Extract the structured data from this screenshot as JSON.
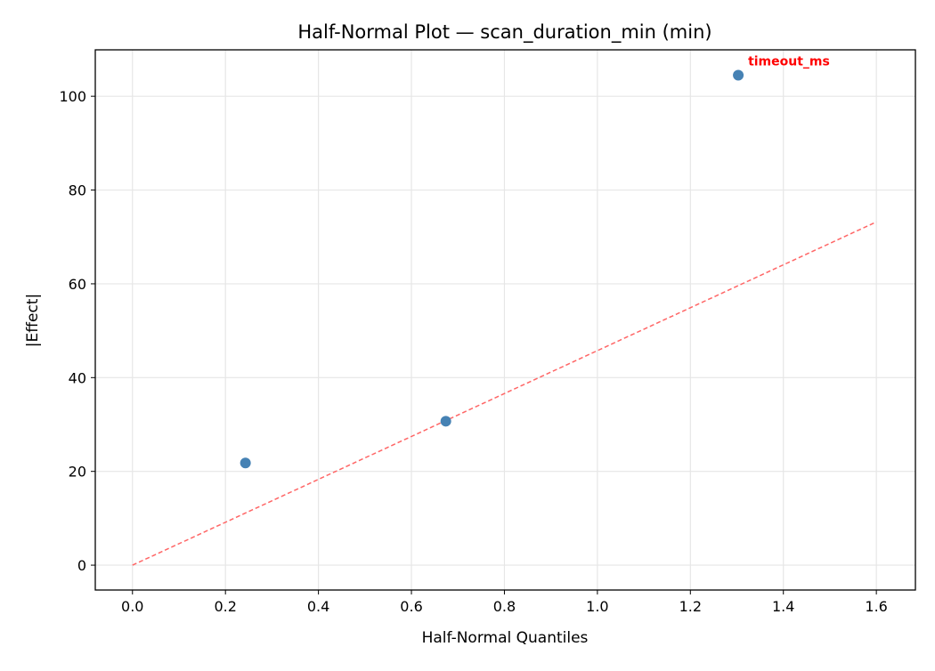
{
  "chart_data": {
    "type": "scatter",
    "title": "Half-Normal Plot — scan_duration_min (min)",
    "xlabel": "Half-Normal Quantiles",
    "ylabel": "|Effect|",
    "xlim": [
      -0.08,
      1.684
    ],
    "ylim": [
      -5.3,
      109.9
    ],
    "xticks": [
      0.0,
      0.2,
      0.4,
      0.6,
      0.8,
      1.0,
      1.2,
      1.4,
      1.6
    ],
    "xtick_labels": [
      "0.0",
      "0.2",
      "0.4",
      "0.6",
      "0.8",
      "1.0",
      "1.2",
      "1.4",
      "1.6"
    ],
    "yticks": [
      0,
      20,
      40,
      60,
      80,
      100
    ],
    "ytick_labels": [
      "0",
      "20",
      "40",
      "60",
      "80",
      "100"
    ],
    "grid": true,
    "points": [
      {
        "x": 0.243,
        "y": 21.8,
        "label": ""
      },
      {
        "x": 0.674,
        "y": 30.7,
        "label": ""
      },
      {
        "x": 1.303,
        "y": 104.5,
        "label": "timeout_ms"
      }
    ],
    "reference_line": {
      "x": [
        0.0,
        1.6
      ],
      "y": [
        0.0,
        73.2
      ],
      "style": "dashed"
    },
    "colors": {
      "points": "#4682b4",
      "reference_line": "#ff6666",
      "annotation": "#ff0000",
      "grid": "#e6e6e6"
    }
  }
}
